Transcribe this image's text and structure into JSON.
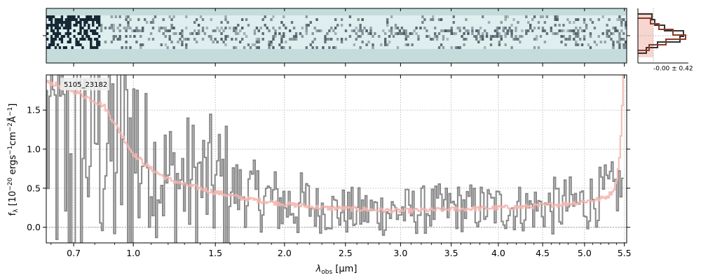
{
  "colors": {
    "data_step": "#888888",
    "model_line": "#f4b6b0",
    "spec2d_background": "#c4dcdc",
    "spec2d_dark": "#0d1f2b",
    "hist_data": "#333333",
    "hist_model": "#8b3a2a",
    "hist_fill": "#f8d6d0",
    "grid": "#b0b0b0"
  },
  "hist_panel": {
    "label": "-0.00 ± 0.42"
  },
  "chart_data": [
    {
      "type": "image",
      "panel": "2D spectrum",
      "xlim": [
        0.58,
        5.53
      ],
      "description_of_axes": "shares x axis with 1D spectrum"
    },
    {
      "type": "line",
      "panel": "1D spectrum",
      "annotation": "5105_23182",
      "xlabel": "λobs [μm]",
      "xlabel_main": "λ",
      "xlabel_sub": "obs",
      "xlabel_unit": "[μm]",
      "ylabel": "fλ [10−20 ergs−1cm−2Å−1]",
      "ylabel_f": "f",
      "ylabel_sub": "λ",
      "ylabel_rest": "[10",
      "ylabel_sup1": "−20",
      "ylabel_rest2": " ergs",
      "ylabel_sup2": "−1",
      "ylabel_rest3": "cm",
      "ylabel_sup3": "−2",
      "ylabel_rest4": "Å",
      "ylabel_sup4": "−1",
      "ylabel_end": "]",
      "xlim": [
        0.58,
        5.53
      ],
      "ylim": [
        -0.2,
        1.95
      ],
      "xscale": "sqrt",
      "grid": true,
      "xticks": [
        0.7,
        1.0,
        1.5,
        2.0,
        2.5,
        3.0,
        3.5,
        4.0,
        4.5,
        5.0,
        5.5
      ],
      "xtick_labels": [
        "0.7",
        "1.0",
        "1.5",
        "2.0",
        "2.5",
        "3.0",
        "3.5",
        "4.0",
        "4.5",
        "5.0",
        "5.5"
      ],
      "yticks": [
        0.0,
        0.5,
        1.0,
        1.5
      ],
      "ytick_labels": [
        "0.0",
        "0.5",
        "1.0",
        "1.5"
      ],
      "series": [
        {
          "role": "model",
          "x": [
            0.6,
            0.7,
            0.8,
            0.85,
            0.9,
            0.95,
            1.0,
            1.1,
            1.2,
            1.3,
            1.5,
            1.7,
            2.0,
            2.3,
            2.5,
            2.8,
            3.0,
            3.3,
            3.5,
            3.8,
            4.0,
            4.3,
            4.5,
            4.8,
            5.0,
            5.2,
            5.3,
            5.35,
            5.4,
            5.45,
            5.48,
            5.5
          ],
          "values": [
            1.85,
            1.75,
            1.62,
            1.55,
            1.35,
            1.15,
            0.95,
            0.75,
            0.62,
            0.55,
            0.45,
            0.37,
            0.3,
            0.25,
            0.24,
            0.22,
            0.21,
            0.22,
            0.23,
            0.24,
            0.25,
            0.26,
            0.28,
            0.3,
            0.33,
            0.36,
            0.4,
            0.45,
            0.55,
            0.9,
            1.5,
            1.95
          ]
        },
        {
          "role": "data",
          "x": [
            0.6,
            0.7,
            0.8,
            0.9,
            1.0,
            1.2,
            1.5,
            2.0,
            2.5,
            3.0,
            3.5,
            4.0,
            4.5,
            5.0,
            5.3,
            5.45
          ],
          "values": [
            1.2,
            0.6,
            1.4,
            0.9,
            1.1,
            0.6,
            0.55,
            0.3,
            0.2,
            0.2,
            0.25,
            0.25,
            0.25,
            0.3,
            0.45,
            0.5
          ]
        }
      ]
    }
  ]
}
